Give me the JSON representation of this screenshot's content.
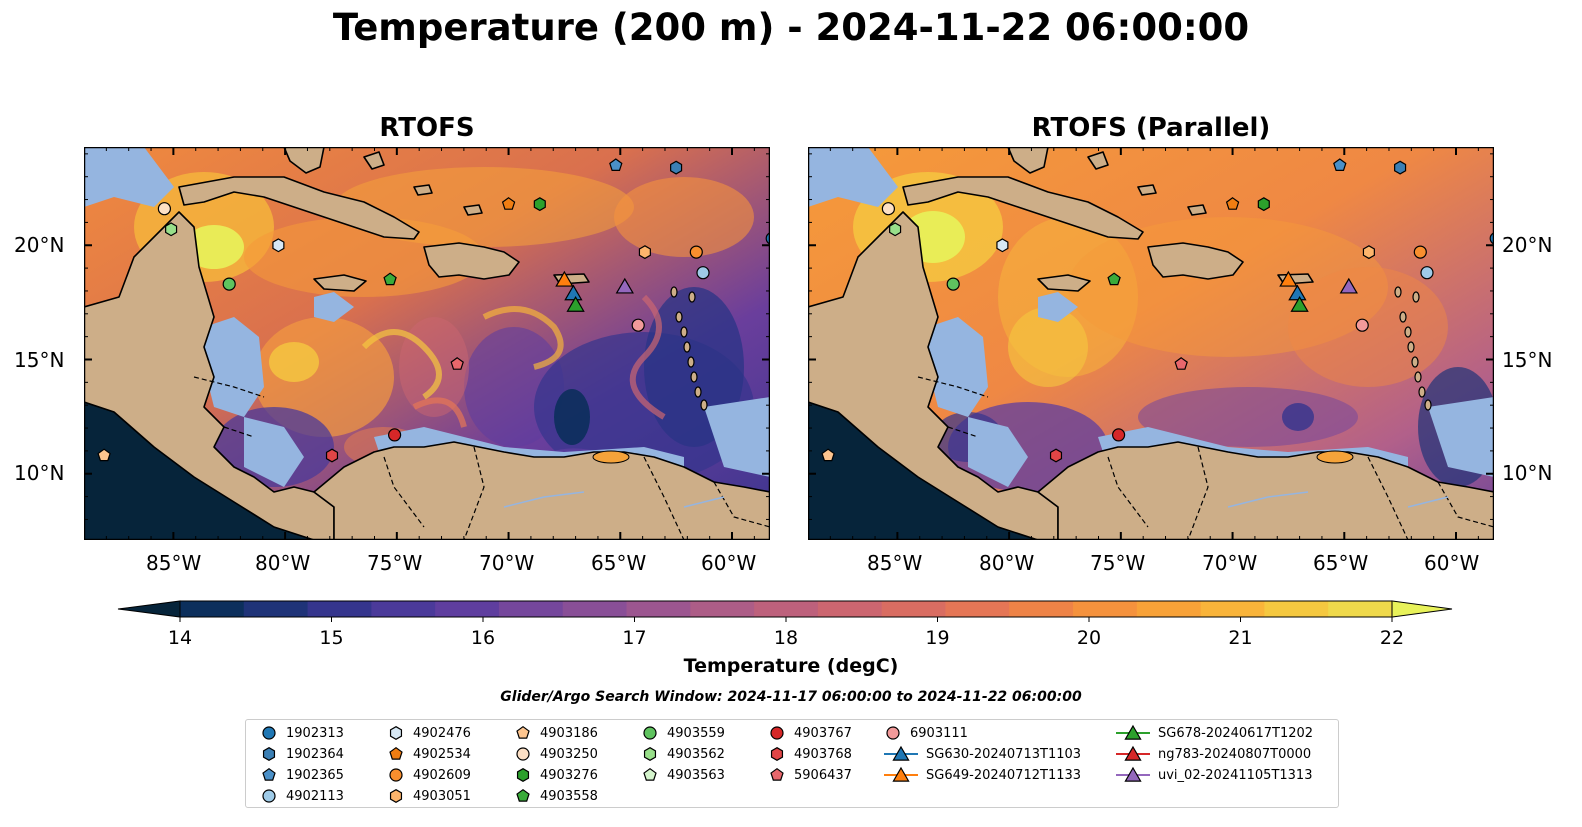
{
  "title": "Temperature (200 m) - 2024-11-22 06:00:00",
  "panels": [
    {
      "title": "RTOFS"
    },
    {
      "title": "RTOFS (Parallel)"
    }
  ],
  "axes": {
    "lon_ticks": [
      "85°W",
      "80°W",
      "75°W",
      "70°W",
      "65°W",
      "60°W"
    ],
    "lat_ticks": [
      "20°N",
      "15°N",
      "10°N"
    ]
  },
  "colorbar": {
    "label": "Temperature (degC)",
    "ticks": [
      "14",
      "15",
      "16",
      "17",
      "18",
      "19",
      "20",
      "21",
      "22"
    ],
    "range": [
      14,
      22
    ],
    "extend": "both",
    "colors": [
      "#06243a",
      "#0c2f5c",
      "#1f3378",
      "#35358d",
      "#4b3a9a",
      "#5f3e9f",
      "#75479c",
      "#894f97",
      "#9c5690",
      "#ad5d87",
      "#bd617c",
      "#cc6670",
      "#d96d62",
      "#e57656",
      "#ee8347",
      "#f5923d",
      "#f8a238",
      "#f9b43a",
      "#f5c840",
      "#efd94b",
      "#e8f25a"
    ]
  },
  "search_window": "Glider/Argo Search Window: 2024-11-17 06:00:00 to 2024-11-22 06:00:00",
  "legend": {
    "columns": [
      [
        {
          "label": "1902313",
          "marker": "circle",
          "color": "#1f77b4"
        },
        {
          "label": "1902364",
          "marker": "hexagon",
          "color": "#3b7fb4"
        },
        {
          "label": "1902365",
          "marker": "pentagon",
          "color": "#4a90c8"
        },
        {
          "label": "4902113",
          "marker": "circle",
          "color": "#9fcbe8"
        }
      ],
      [
        {
          "label": "4902476",
          "marker": "hexagon",
          "color": "#d7e8f4"
        },
        {
          "label": "4902534",
          "marker": "pentagon",
          "color": "#f07d12"
        },
        {
          "label": "4902609",
          "marker": "circle",
          "color": "#f88f2e"
        },
        {
          "label": "4903051",
          "marker": "hexagon",
          "color": "#fdb56c"
        }
      ],
      [
        {
          "label": "4903186",
          "marker": "pentagon",
          "color": "#fdc58f"
        },
        {
          "label": "4903250",
          "marker": "circle",
          "color": "#fde0c5"
        },
        {
          "label": "4903276",
          "marker": "hexagon",
          "color": "#2ca02c"
        },
        {
          "label": "4903558",
          "marker": "pentagon",
          "color": "#3aab3a"
        }
      ],
      [
        {
          "label": "4903559",
          "marker": "circle",
          "color": "#5fc35f"
        },
        {
          "label": "4903562",
          "marker": "hexagon",
          "color": "#98df8a"
        },
        {
          "label": "4903563",
          "marker": "pentagon",
          "color": "#d4f4cc"
        }
      ],
      [
        {
          "label": "4903767",
          "marker": "circle",
          "color": "#d62728"
        },
        {
          "label": "4903768",
          "marker": "hexagon",
          "color": "#e04546"
        },
        {
          "label": "5906437",
          "marker": "pentagon",
          "color": "#e8676c"
        }
      ],
      [
        {
          "label": "6903111",
          "marker": "circle",
          "color": "#f29a9a"
        },
        {
          "label": "SG630-20240713T1103",
          "marker": "triangle",
          "color": "#1f77b4"
        },
        {
          "label": "SG649-20240712T1133",
          "marker": "triangle",
          "color": "#ff7f0e"
        }
      ],
      [
        {
          "label": "SG678-20240617T1202",
          "marker": "triangle",
          "color": "#2ca02c"
        },
        {
          "label": "ng783-20240807T0000",
          "marker": "triangle",
          "color": "#d62728"
        },
        {
          "label": "uvi_02-20241105T1313",
          "marker": "triangle",
          "color": "#9467bd"
        }
      ]
    ]
  },
  "markers": [
    {
      "id": "1902313",
      "marker": "circle",
      "color": "#1f77b4",
      "lon": -58.2,
      "lat": 20.3
    },
    {
      "id": "1902364",
      "marker": "hexagon",
      "color": "#3b7fb4",
      "lon": -62.5,
      "lat": 23.4
    },
    {
      "id": "1902365",
      "marker": "pentagon",
      "color": "#4a90c8",
      "lon": -65.2,
      "lat": 23.5
    },
    {
      "id": "4902113",
      "marker": "circle",
      "color": "#9fcbe8",
      "lon": -61.3,
      "lat": 18.8
    },
    {
      "id": "4902476",
      "marker": "hexagon",
      "color": "#d7e8f4",
      "lon": -80.3,
      "lat": 20.0
    },
    {
      "id": "4902534",
      "marker": "pentagon",
      "color": "#f07d12",
      "lon": -70.0,
      "lat": 21.8
    },
    {
      "id": "4902609",
      "marker": "circle",
      "color": "#f88f2e",
      "lon": -61.6,
      "lat": 19.7
    },
    {
      "id": "4903051",
      "marker": "hexagon",
      "color": "#fdb56c",
      "lon": -63.9,
      "lat": 19.7
    },
    {
      "id": "4903186",
      "marker": "pentagon",
      "color": "#fdc58f",
      "lon": -88.1,
      "lat": 10.8
    },
    {
      "id": "4903250",
      "marker": "circle",
      "color": "#fde0c5",
      "lon": -85.4,
      "lat": 21.6
    },
    {
      "id": "4903276",
      "marker": "hexagon",
      "color": "#2ca02c",
      "lon": -68.6,
      "lat": 21.8
    },
    {
      "id": "4903558",
      "marker": "pentagon",
      "color": "#3aab3a",
      "lon": -75.3,
      "lat": 18.5
    },
    {
      "id": "4903559",
      "marker": "circle",
      "color": "#5fc35f",
      "lon": -82.5,
      "lat": 18.3
    },
    {
      "id": "4903562",
      "marker": "hexagon",
      "color": "#98df8a",
      "lon": -85.1,
      "lat": 20.7
    },
    {
      "id": "4903767",
      "marker": "circle",
      "color": "#d62728",
      "lon": -75.1,
      "lat": 11.7
    },
    {
      "id": "4903768",
      "marker": "hexagon",
      "color": "#e04546",
      "lon": -77.9,
      "lat": 10.8
    },
    {
      "id": "5906437",
      "marker": "pentagon",
      "color": "#e8676c",
      "lon": -72.3,
      "lat": 14.8
    },
    {
      "id": "6903111",
      "marker": "circle",
      "color": "#f29a9a",
      "lon": -64.2,
      "lat": 16.5
    },
    {
      "id": "SG649-20240712T1133",
      "marker": "triangle",
      "color": "#ff7f0e",
      "lon": -67.5,
      "lat": 18.5
    },
    {
      "id": "SG630-20240713T1103",
      "marker": "triangle",
      "color": "#1f77b4",
      "lon": -67.1,
      "lat": 17.9
    },
    {
      "id": "SG678-20240617T1202",
      "marker": "triangle",
      "color": "#2ca02c",
      "lon": -67.0,
      "lat": 17.4
    },
    {
      "id": "uvi_02-20241105T1313",
      "marker": "triangle",
      "color": "#9467bd",
      "lon": -64.8,
      "lat": 18.2
    }
  ]
}
